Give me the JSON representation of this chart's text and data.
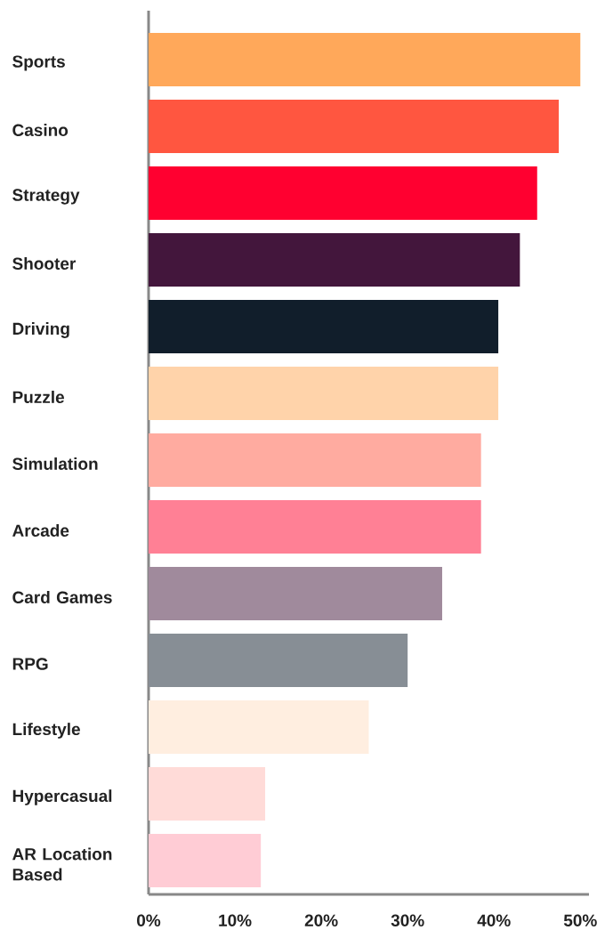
{
  "chart_data": {
    "type": "bar",
    "orientation": "horizontal",
    "categories": [
      "Sports",
      "Casino",
      "Strategy",
      "Shooter",
      "Driving",
      "Puzzle",
      "Simulation",
      "Arcade",
      "Card Games",
      "RPG",
      "Lifestyle",
      "Hypercasual",
      "AR Location Based"
    ],
    "values": [
      50,
      47.5,
      45,
      43,
      40.5,
      40.5,
      38.5,
      38.5,
      34,
      30,
      25.5,
      13.5,
      13
    ],
    "colors": [
      "#ffa85a",
      "#ff5640",
      "#ff0030",
      "#43163c",
      "#111e2b",
      "#ffd3aa",
      "#ffaba0",
      "#ff8095",
      "#a08a9c",
      "#878e95",
      "#ffeee0",
      "#ffdbd8",
      "#ffccd5"
    ],
    "xlim": [
      0,
      51
    ],
    "xticks": [
      {
        "value": 0,
        "label": "0%"
      },
      {
        "value": 10,
        "label": "10%"
      },
      {
        "value": 20,
        "label": "20%"
      },
      {
        "value": 30,
        "label": "30%"
      },
      {
        "value": 40,
        "label": "40%"
      },
      {
        "value": 50,
        "label": "50%"
      }
    ]
  }
}
